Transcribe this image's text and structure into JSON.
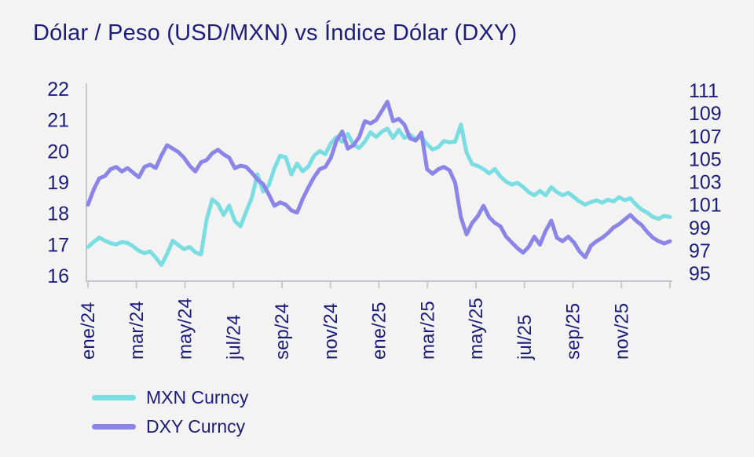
{
  "title": "Dólar / Peso (USD/MXN) vs Índice Dólar (DXY)",
  "colors": {
    "background": "#F3F3F4",
    "text_navy": "#1B1C7D",
    "axis_gray": "#C8C8CC",
    "mxn_line": "#79DDE2",
    "dxy_line": "#8B85EA"
  },
  "legend": [
    {
      "label": "MXN Curncy",
      "color": "#79DDE2"
    },
    {
      "label": "DXY Curncy",
      "color": "#8B85EA"
    }
  ],
  "chart_data": {
    "type": "line",
    "title": "Dólar / Peso (USD/MXN) vs Índice Dólar (DXY)",
    "x_description": "Weekly samples, January 2024 through late December 2025",
    "x_tick_labels": [
      "ene/24",
      "mar/24",
      "may/24",
      "jul/24",
      "sep/24",
      "nov/24",
      "ene/25",
      "mar/25",
      "may/25",
      "jul/25",
      "sep/25",
      "nov/25"
    ],
    "months_per_tick": 2,
    "grid": false,
    "legend_position": "bottom-left",
    "left_axis": {
      "label_series": "MXN Curncy",
      "ticks": [
        22,
        21,
        20,
        19,
        18,
        17,
        16
      ],
      "range": [
        16,
        22
      ]
    },
    "right_axis": {
      "label_series": "DXY Curncy",
      "ticks": [
        111,
        109,
        107,
        105,
        103,
        101,
        99,
        97,
        95
      ],
      "range": [
        95,
        111
      ]
    },
    "series": [
      {
        "name": "MXN Curncy",
        "axis": "left",
        "color": "#79DDE2",
        "values": [
          16.92,
          17.08,
          17.22,
          17.12,
          17.04,
          17.0,
          17.08,
          17.05,
          16.94,
          16.8,
          16.72,
          16.78,
          16.58,
          16.34,
          16.7,
          17.12,
          16.98,
          16.85,
          16.92,
          16.75,
          16.68,
          17.8,
          18.45,
          18.3,
          17.95,
          18.25,
          17.75,
          17.58,
          18.05,
          18.5,
          19.25,
          18.7,
          18.9,
          19.45,
          19.85,
          19.8,
          19.25,
          19.6,
          19.35,
          19.5,
          19.85,
          20.0,
          19.9,
          20.25,
          20.45,
          20.3,
          20.55,
          20.2,
          20.1,
          20.3,
          20.6,
          20.45,
          20.62,
          20.72,
          20.42,
          20.68,
          20.42,
          20.52,
          20.38,
          20.46,
          20.22,
          20.05,
          20.12,
          20.32,
          20.28,
          20.3,
          20.85,
          19.95,
          19.58,
          19.52,
          19.42,
          19.28,
          19.42,
          19.18,
          19.02,
          18.92,
          18.98,
          18.85,
          18.68,
          18.58,
          18.72,
          18.58,
          18.84,
          18.68,
          18.58,
          18.66,
          18.52,
          18.38,
          18.28,
          18.36,
          18.42,
          18.34,
          18.44,
          18.38,
          18.52,
          18.42,
          18.48,
          18.28,
          18.12,
          18.02,
          17.88,
          17.82,
          17.92,
          17.88
        ]
      },
      {
        "name": "DXY Curncy",
        "axis": "right",
        "color": "#8B85EA",
        "values": [
          101.0,
          102.3,
          103.3,
          103.5,
          104.1,
          104.3,
          103.9,
          104.2,
          103.8,
          103.4,
          104.3,
          104.5,
          104.2,
          105.3,
          106.2,
          105.9,
          105.6,
          105.1,
          104.4,
          103.9,
          104.7,
          104.9,
          105.5,
          105.8,
          105.4,
          105.1,
          104.2,
          104.4,
          104.3,
          103.8,
          103.2,
          102.8,
          101.9,
          100.9,
          101.2,
          101.0,
          100.5,
          100.3,
          101.5,
          102.5,
          103.4,
          104.1,
          104.3,
          105.1,
          106.6,
          107.4,
          105.9,
          106.2,
          106.9,
          108.3,
          108.1,
          108.4,
          109.2,
          110.0,
          108.3,
          108.5,
          108.0,
          106.8,
          106.6,
          107.3,
          104.1,
          103.7,
          104.1,
          104.3,
          104.0,
          102.9,
          99.9,
          98.4,
          99.4,
          100.0,
          100.9,
          99.9,
          99.4,
          99.1,
          98.2,
          97.7,
          97.2,
          96.8,
          97.3,
          98.2,
          97.5,
          98.7,
          99.6,
          98.1,
          97.8,
          98.2,
          97.7,
          96.9,
          96.4,
          97.4,
          97.8,
          98.1,
          98.5,
          99.0,
          99.3,
          99.7,
          100.1,
          99.6,
          99.2,
          98.6,
          98.1,
          97.8,
          97.6,
          97.8
        ]
      }
    ]
  }
}
